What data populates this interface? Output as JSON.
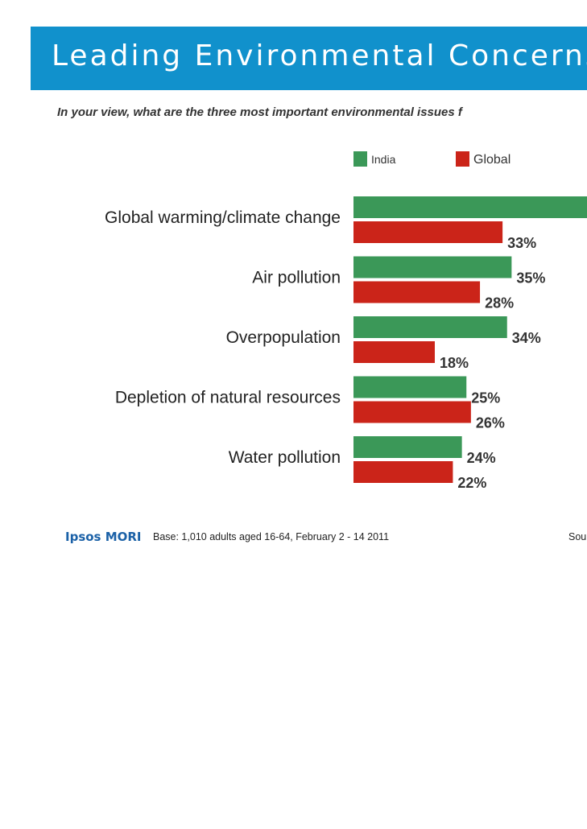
{
  "header": {
    "title": "Leading Environmental Concerns",
    "subtitle": "In your view, what are the three most important environmental issues f"
  },
  "footer": {
    "logo": "Ipsos MORI",
    "base": "Base: 1,010 adults aged 16-64, February 2 - 14 2011",
    "source": "Sou"
  },
  "colors": {
    "title_bar": "#1191cc",
    "india": "#3b9858",
    "global": "#cb2419"
  },
  "chart_data": {
    "type": "bar",
    "orientation": "horizontal",
    "categories": [
      "Global warming/climate change",
      "Air pollution",
      "Overpopulation",
      "Depletion of natural resources",
      "Water pollution"
    ],
    "series": [
      {
        "name": "India",
        "values": [
          55,
          35,
          34,
          25,
          24
        ],
        "labels": [
          "",
          "35%",
          "34%",
          "25%",
          "24%"
        ]
      },
      {
        "name": "Global",
        "values": [
          33,
          28,
          18,
          26,
          22
        ],
        "labels": [
          "33%",
          "28%",
          "18%",
          "26%",
          "22%"
        ]
      }
    ],
    "legend": "top"
  }
}
